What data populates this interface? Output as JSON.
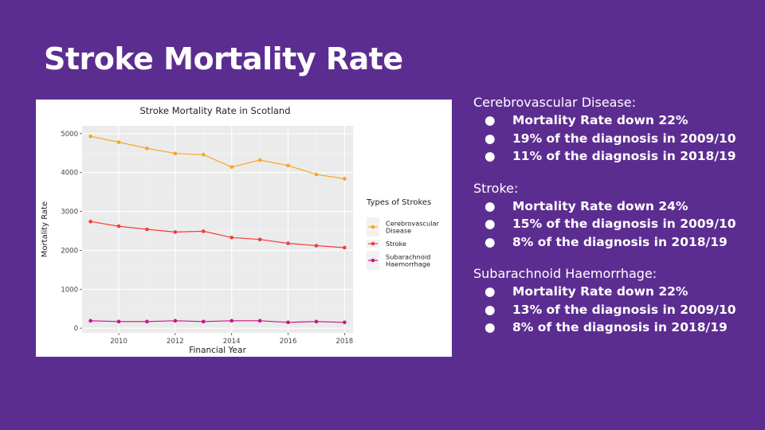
{
  "slide": {
    "title": "Stroke Mortality Rate"
  },
  "chart_data": {
    "type": "line",
    "title": "Stroke Mortality Rate in Scotland",
    "xlabel": "Financial Year",
    "ylabel": "Mortality Rate",
    "x": [
      2009,
      2010,
      2011,
      2012,
      2013,
      2014,
      2015,
      2016,
      2017,
      2018
    ],
    "xticks": [
      2010,
      2012,
      2014,
      2016,
      2018
    ],
    "yticks": [
      0,
      1000,
      2000,
      3000,
      4000,
      5000
    ],
    "xlim": [
      2008.7,
      2018.3
    ],
    "ylim": [
      -120,
      5200
    ],
    "grid": true,
    "legend_title": "Types of Strokes",
    "legend_position": "right",
    "series": [
      {
        "name": "Cerebrovascular\nDisease",
        "color": "#f5a623",
        "values": [
          4930,
          4780,
          4620,
          4490,
          4460,
          4140,
          4320,
          4180,
          3950,
          3840
        ]
      },
      {
        "name": "Stroke",
        "color": "#f53b3b",
        "values": [
          2740,
          2620,
          2540,
          2470,
          2490,
          2330,
          2280,
          2180,
          2120,
          2070
        ]
      },
      {
        "name": "Subarachnoid\nHaemorrhage",
        "color": "#c71585",
        "values": [
          190,
          170,
          170,
          190,
          170,
          190,
          190,
          150,
          170,
          150
        ]
      }
    ]
  },
  "notes": [
    {
      "heading": "Cerebrovascular Disease:",
      "bullets": [
        "Mortality Rate down 22%",
        "19% of the diagnosis in 2009/10",
        "11% of the diagnosis in 2018/19"
      ]
    },
    {
      "heading": "Stroke:",
      "bullets": [
        "Mortality Rate down 24%",
        "15% of the diagnosis in 2009/10",
        "8% of the diagnosis in 2018/19"
      ]
    },
    {
      "heading": "Subarachnoid Haemorrhage:",
      "bullets": [
        "Mortality Rate down 22%",
        "13% of the diagnosis in 2009/10",
        "8% of the diagnosis in 2018/19"
      ]
    }
  ],
  "bullet_glyph": "●"
}
